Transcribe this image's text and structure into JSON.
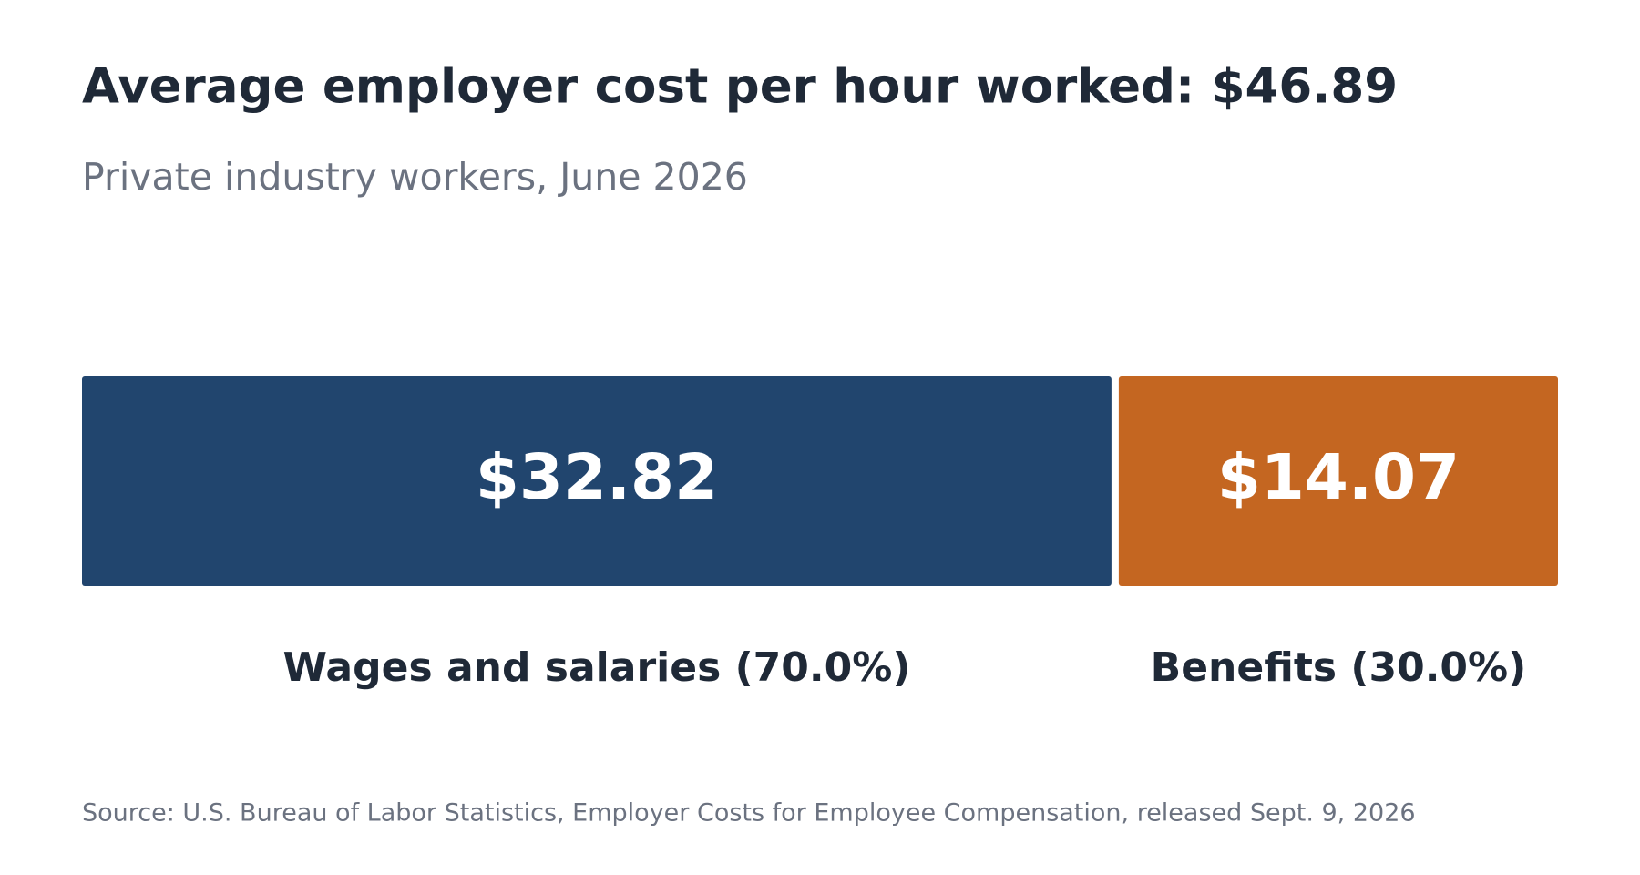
{
  "chart_data": {
    "type": "stacked-bar",
    "title": "Average employer cost per hour worked: $46.89",
    "subtitle": "Private industry workers, June 2026",
    "source": "Source: U.S. Bureau of Labor Statistics, Employer Costs for Employee Compensation, released Sept. 9, 2026",
    "series": [
      {
        "name": "Wages and salaries (70.0%)",
        "color": "#21456e",
        "values": [
          32.82
        ],
        "value_labels": [
          "$32.82"
        ]
      },
      {
        "name": "Benefits (30.0%)",
        "color": "#c46621",
        "values": [
          14.07
        ],
        "value_labels": [
          "$14.07"
        ]
      }
    ]
  }
}
